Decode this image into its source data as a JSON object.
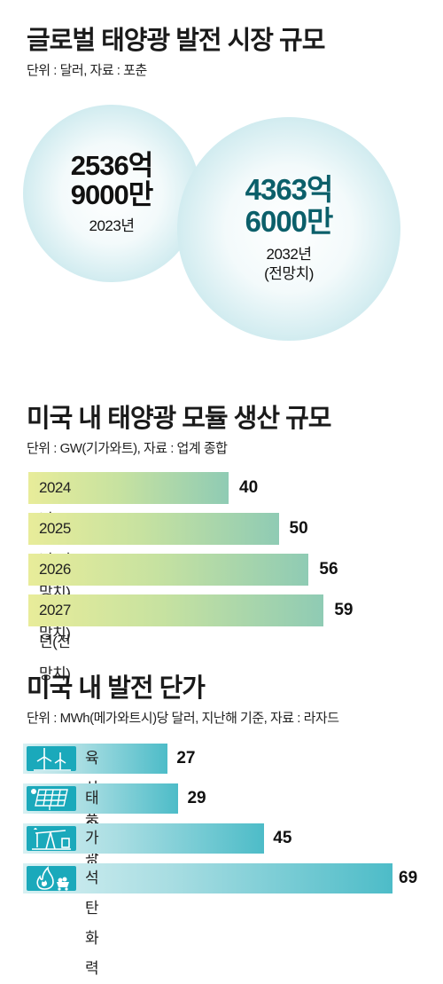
{
  "section1": {
    "title": "글로벌 태양광 발전 시장 규모",
    "unit": "단위 : 달러, 자료 : 포춘",
    "bubbles": [
      {
        "value_line1": "2536억",
        "value_line2": "9000만",
        "year": "2023년",
        "year2": ""
      },
      {
        "value_line1": "4363억",
        "value_line2": "6000만",
        "year": "2032년",
        "year2": "(전망치)",
        "value_color": "#0b5f6a"
      }
    ]
  },
  "section2": {
    "title": "미국 내 태양광 모듈 생산 규모",
    "unit": "단위 : GW(기가와트), 자료 : 업계 종합"
  },
  "section3": {
    "title": "미국 내 발전 단가",
    "unit": "단위 : MWh(메가와트시)당 달러, 지난해 기준, 자료 : 라자드"
  },
  "chart_data": [
    {
      "type": "bar",
      "orientation": "horizontal",
      "title": "미국 내 태양광 모듈 생산 규모",
      "categories": [
        "2024년",
        "2025년(전망치)",
        "2026년(전망치)",
        "2027년(전망치)"
      ],
      "values": [
        40,
        50,
        56,
        59
      ],
      "value_labels": [
        "40",
        "50",
        "56",
        "59"
      ]
    },
    {
      "type": "bar",
      "orientation": "horizontal",
      "title": "미국 내 발전 단가",
      "categories": [
        "육상풍력",
        "태양광",
        "가스",
        "석탄화력"
      ],
      "values": [
        27,
        29,
        45,
        69
      ],
      "value_labels": [
        "27",
        "29",
        "45",
        "69"
      ],
      "icons": [
        "wind-turbine-icon",
        "solar-panel-icon",
        "gas-pump-jack-icon",
        "coal-fire-icon"
      ]
    }
  ]
}
